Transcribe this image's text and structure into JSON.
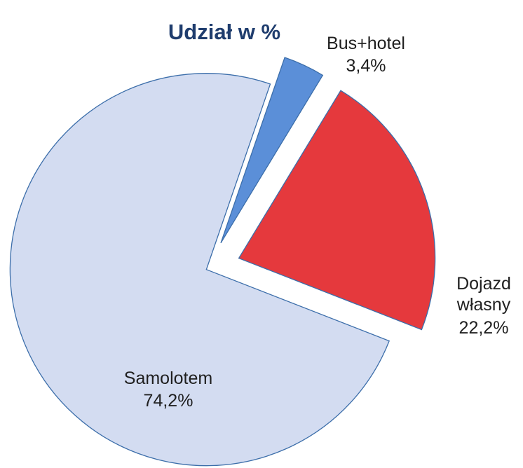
{
  "chart_data": {
    "type": "pie",
    "title": "Udział w %",
    "categories": [
      "Bus+hotel",
      "Dojazd własny",
      "Samolotem"
    ],
    "values": [
      3.4,
      22.2,
      74.2
    ],
    "value_labels": [
      "3,4%",
      "22,2%",
      "74,2%"
    ],
    "colors": [
      "#5b8fd8",
      "#e5393d",
      "#d3dcf1"
    ]
  }
}
